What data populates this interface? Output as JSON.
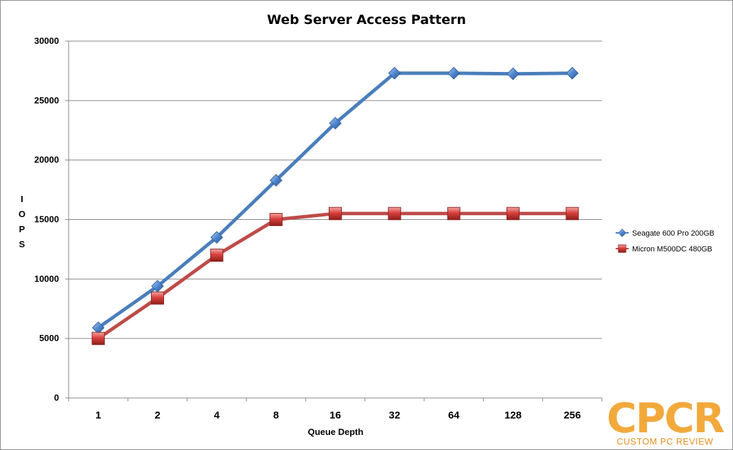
{
  "chart_data": {
    "type": "line",
    "title": "Web Server Access Pattern",
    "xlabel": "Queue Depth",
    "ylabel": "I O P S",
    "categories": [
      "1",
      "2",
      "4",
      "8",
      "16",
      "32",
      "64",
      "128",
      "256"
    ],
    "ylim": [
      0,
      30000
    ],
    "yticks": [
      "0",
      "5000",
      "10000",
      "15000",
      "20000",
      "25000",
      "30000"
    ],
    "grid": true,
    "legend_position": "right",
    "series": [
      {
        "name": "Seagate 600 Pro 200GB",
        "color": "#4a7ebb",
        "marker": "diamond",
        "values": [
          5900,
          9400,
          13500,
          18300,
          23100,
          27300,
          27300,
          27250,
          27300
        ]
      },
      {
        "name": "Micron M500DC 480GB",
        "color": "#be4b48",
        "marker": "square",
        "values": [
          5000,
          8400,
          12000,
          15000,
          15500,
          15500,
          15500,
          15500,
          15500
        ]
      }
    ]
  },
  "watermark": {
    "logo_text": "CPCR",
    "tagline": "CUSTOM PC REVIEW",
    "color": "#f2a93b"
  }
}
